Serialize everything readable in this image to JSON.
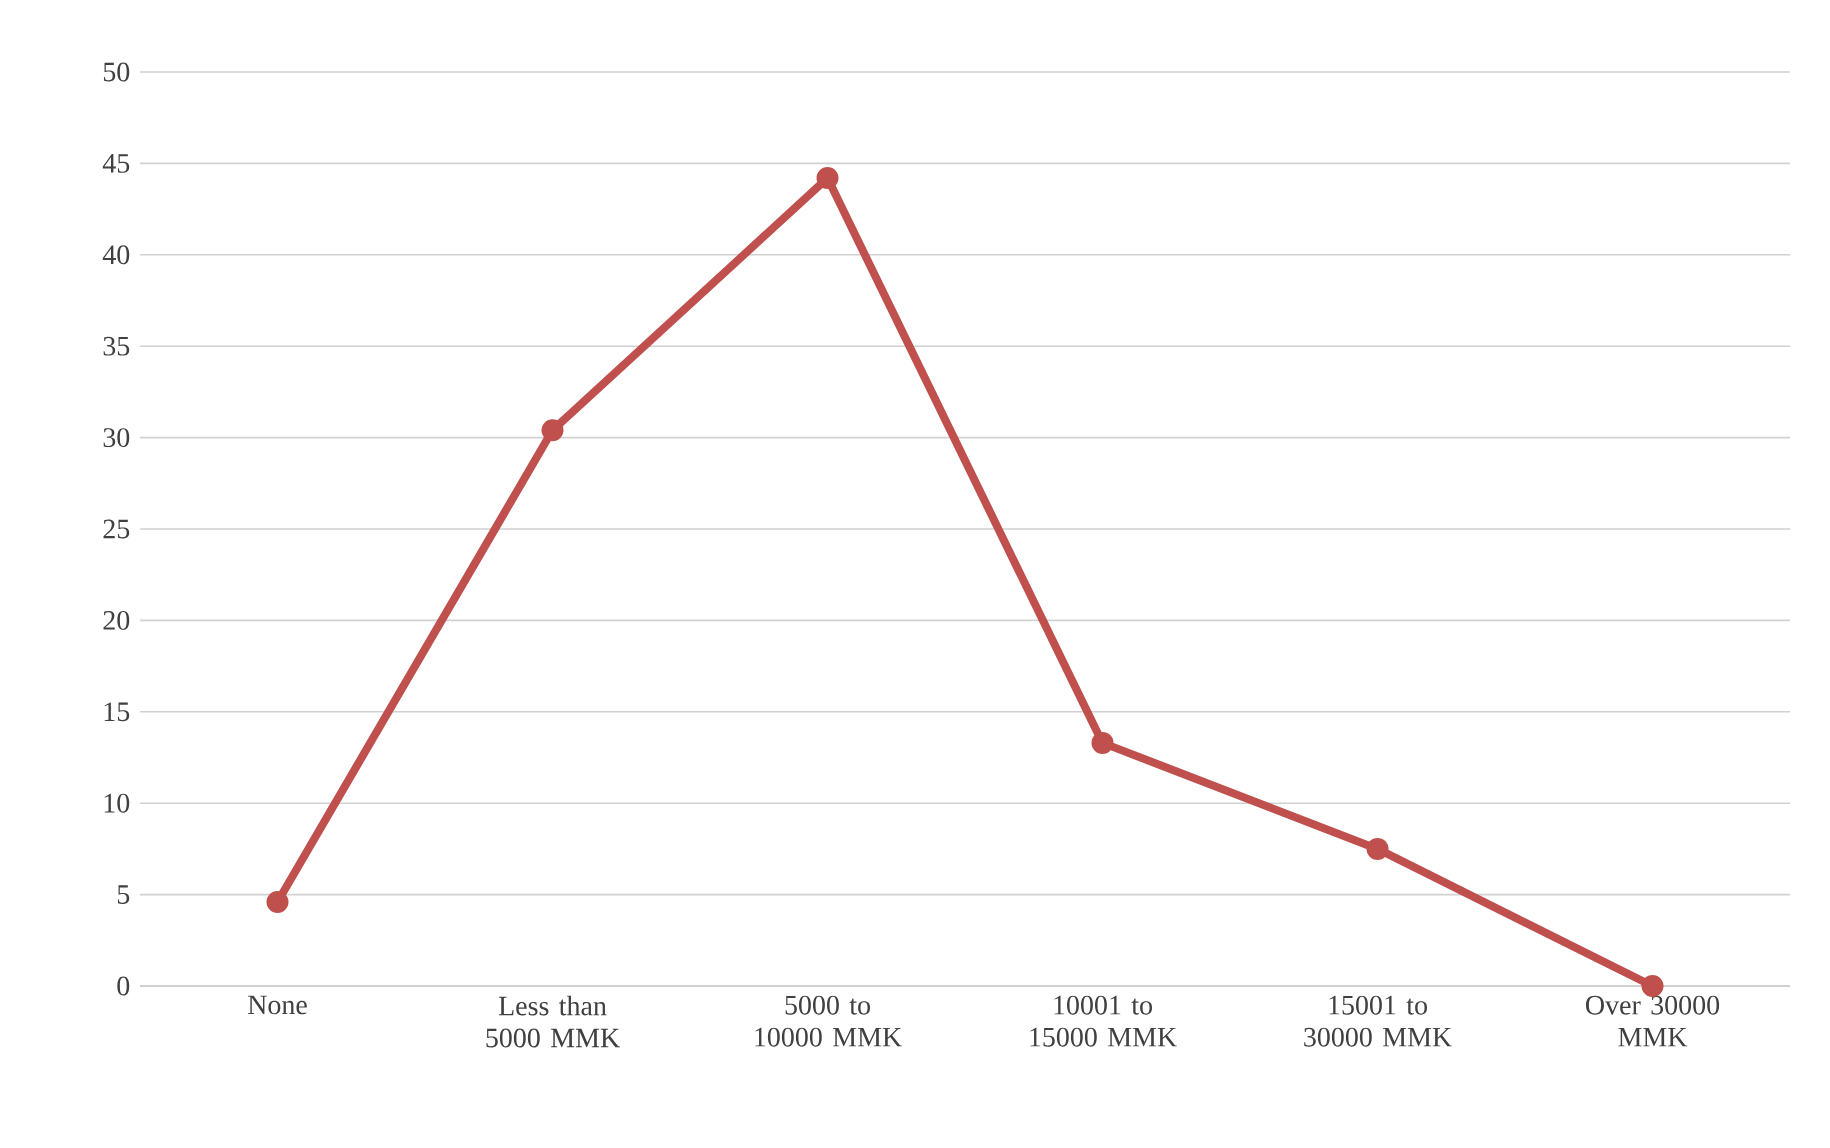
{
  "chart_data": {
    "type": "line",
    "categories": [
      "None",
      "Less than 5000 MMK",
      "5000 to 10000 MMK",
      "10001 to 15000 MMK",
      "15001 to 30000 MMK",
      "Over 30000 MMK"
    ],
    "series": [
      {
        "color": "#c0504d",
        "values": [
          4.6,
          30.4,
          44.2,
          13.3,
          7.5,
          0
        ]
      }
    ],
    "ylim": [
      0,
      50
    ],
    "yticks": [
      0,
      5,
      10,
      15,
      20,
      25,
      30,
      35,
      40,
      45,
      50
    ],
    "grid": "y",
    "marker": "circle"
  }
}
